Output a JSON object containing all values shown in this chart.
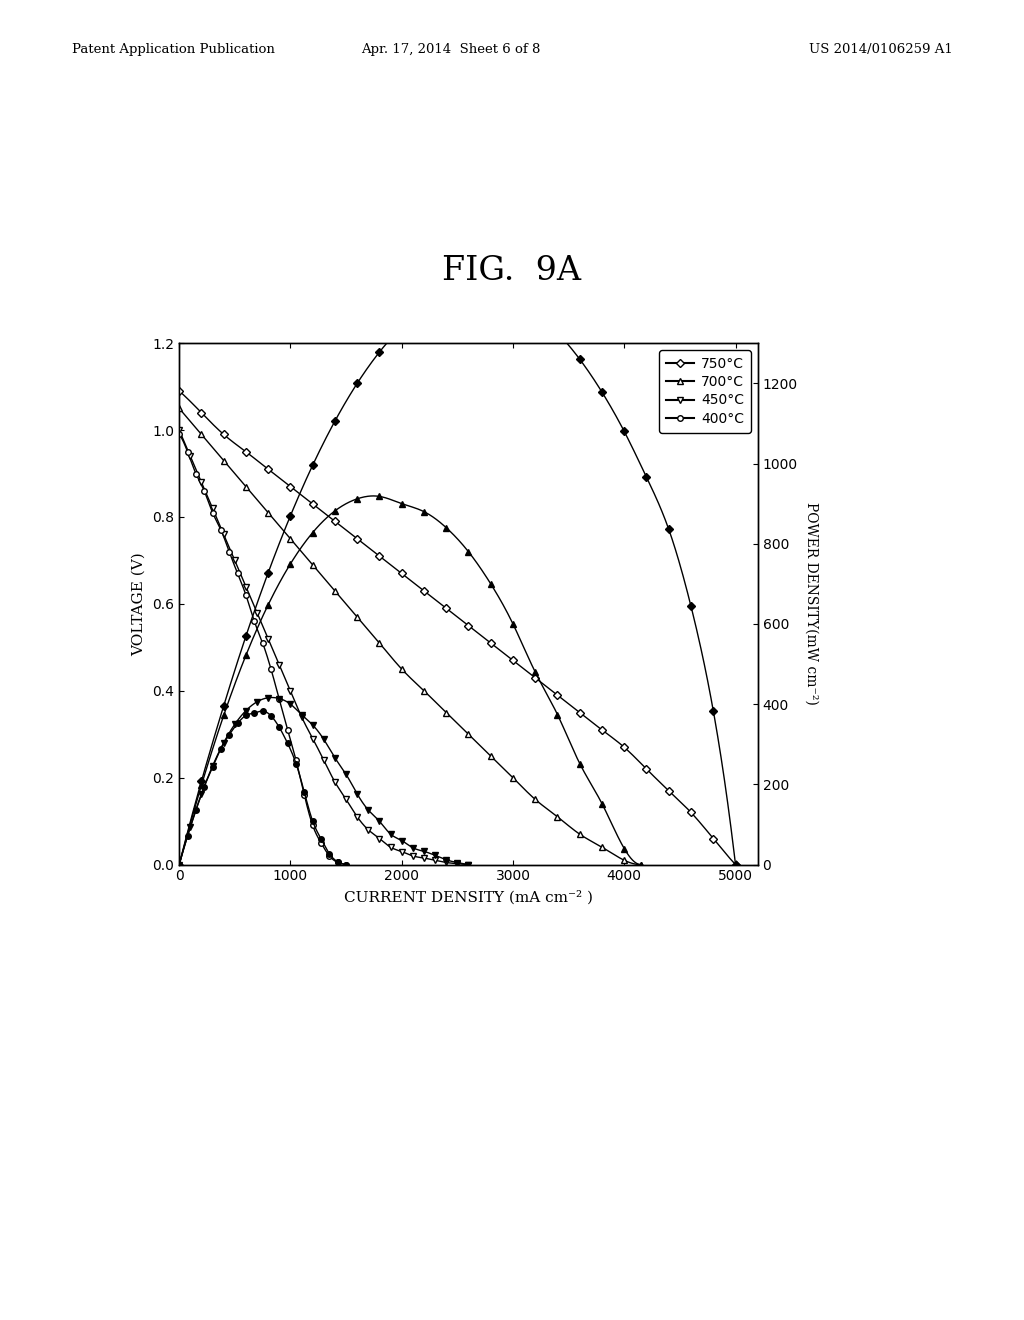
{
  "title": "FIG.  9A",
  "xlabel": "CURRENT DENSITY (mA cm⁻² )",
  "ylabel_left": "VOLTAGE (V)",
  "ylabel_right": "POWER DENSITY(mW cm⁻²)",
  "xlim": [
    0,
    5200
  ],
  "ylim_left": [
    0,
    1.2
  ],
  "ylim_right": [
    0,
    1300
  ],
  "xticks": [
    0,
    1000,
    2000,
    3000,
    4000,
    5000
  ],
  "yticks_left": [
    0.0,
    0.2,
    0.4,
    0.6,
    0.8,
    1.0,
    1.2
  ],
  "yticks_right": [
    0,
    200,
    400,
    600,
    800,
    1000,
    1200
  ],
  "temperatures": [
    "750°C",
    "700°C",
    "450°C",
    "400°C"
  ],
  "voltage_750": {
    "x": [
      0,
      200,
      400,
      600,
      800,
      1000,
      1200,
      1400,
      1600,
      1800,
      2000,
      2200,
      2400,
      2600,
      2800,
      3000,
      3200,
      3400,
      3600,
      3800,
      4000,
      4200,
      4400,
      4600,
      4800,
      5000
    ],
    "y": [
      1.09,
      1.04,
      0.99,
      0.95,
      0.91,
      0.87,
      0.83,
      0.79,
      0.75,
      0.71,
      0.67,
      0.63,
      0.59,
      0.55,
      0.51,
      0.47,
      0.43,
      0.39,
      0.35,
      0.31,
      0.27,
      0.22,
      0.17,
      0.12,
      0.06,
      0.0
    ]
  },
  "power_750": {
    "x": [
      0,
      200,
      400,
      600,
      800,
      1000,
      1200,
      1400,
      1600,
      1800,
      2000,
      2200,
      2400,
      2600,
      2800,
      3000,
      3200,
      3400,
      3600,
      3800,
      4000,
      4200,
      4400,
      4600,
      4800,
      5000
    ],
    "y": [
      0,
      208,
      396,
      570,
      728,
      870,
      996,
      1106,
      1200,
      1278,
      1340,
      1386,
      1416,
      1430,
      1428,
      1410,
      1376,
      1326,
      1260,
      1178,
      1080,
      966,
      836,
      644,
      384,
      0
    ]
  },
  "voltage_700": {
    "x": [
      0,
      200,
      400,
      600,
      800,
      1000,
      1200,
      1400,
      1600,
      1800,
      2000,
      2200,
      2400,
      2600,
      2800,
      3000,
      3200,
      3400,
      3600,
      3800,
      4000,
      4150
    ],
    "y": [
      1.05,
      0.99,
      0.93,
      0.87,
      0.81,
      0.75,
      0.69,
      0.63,
      0.57,
      0.51,
      0.45,
      0.4,
      0.35,
      0.3,
      0.25,
      0.2,
      0.15,
      0.11,
      0.07,
      0.04,
      0.01,
      0.0
    ]
  },
  "power_700": {
    "x": [
      0,
      200,
      400,
      600,
      800,
      1000,
      1200,
      1400,
      1600,
      1800,
      2000,
      2200,
      2400,
      2600,
      2800,
      3000,
      3200,
      3400,
      3600,
      3800,
      4000,
      4150
    ],
    "y": [
      0,
      198,
      372,
      522,
      648,
      750,
      828,
      882,
      912,
      918,
      900,
      880,
      840,
      780,
      700,
      600,
      480,
      374,
      252,
      152,
      40,
      0
    ]
  },
  "voltage_450": {
    "x": [
      0,
      100,
      200,
      300,
      400,
      500,
      600,
      700,
      800,
      900,
      1000,
      1100,
      1200,
      1300,
      1400,
      1500,
      1600,
      1700,
      1800,
      1900,
      2000,
      2100,
      2200,
      2300,
      2400,
      2500,
      2600
    ],
    "y": [
      1.0,
      0.94,
      0.88,
      0.82,
      0.76,
      0.7,
      0.64,
      0.58,
      0.52,
      0.46,
      0.4,
      0.34,
      0.29,
      0.24,
      0.19,
      0.15,
      0.11,
      0.08,
      0.06,
      0.04,
      0.03,
      0.02,
      0.015,
      0.01,
      0.005,
      0.002,
      0.0
    ]
  },
  "power_450": {
    "x": [
      0,
      100,
      200,
      300,
      400,
      500,
      600,
      700,
      800,
      900,
      1000,
      1100,
      1200,
      1300,
      1400,
      1500,
      1600,
      1700,
      1800,
      1900,
      2000,
      2100,
      2200,
      2300,
      2400,
      2500,
      2600
    ],
    "y": [
      0,
      94,
      176,
      246,
      304,
      350,
      384,
      406,
      416,
      414,
      400,
      374,
      348,
      312,
      266,
      225,
      176,
      136,
      108,
      76,
      60,
      42,
      33,
      23,
      12,
      5,
      0
    ]
  },
  "voltage_400": {
    "x": [
      0,
      75,
      150,
      225,
      300,
      375,
      450,
      525,
      600,
      675,
      750,
      825,
      900,
      975,
      1050,
      1125,
      1200,
      1275,
      1350,
      1425,
      1500
    ],
    "y": [
      0.99,
      0.95,
      0.9,
      0.86,
      0.81,
      0.77,
      0.72,
      0.67,
      0.62,
      0.56,
      0.51,
      0.45,
      0.38,
      0.31,
      0.24,
      0.16,
      0.09,
      0.05,
      0.02,
      0.005,
      0.0
    ]
  },
  "power_400": {
    "x": [
      0,
      75,
      150,
      225,
      300,
      375,
      450,
      525,
      600,
      675,
      750,
      825,
      900,
      975,
      1050,
      1125,
      1200,
      1275,
      1350,
      1425,
      1500
    ],
    "y": [
      0,
      71,
      135,
      194,
      243,
      289,
      324,
      352,
      372,
      378,
      383,
      371,
      342,
      302,
      252,
      180,
      108,
      64,
      27,
      7,
      0
    ]
  },
  "background_color": "#ffffff",
  "line_color": "#000000",
  "header_left": "Patent Application Publication",
  "header_middle": "Apr. 17, 2014  Sheet 6 of 8",
  "header_right": "US 2014/0106259 A1"
}
